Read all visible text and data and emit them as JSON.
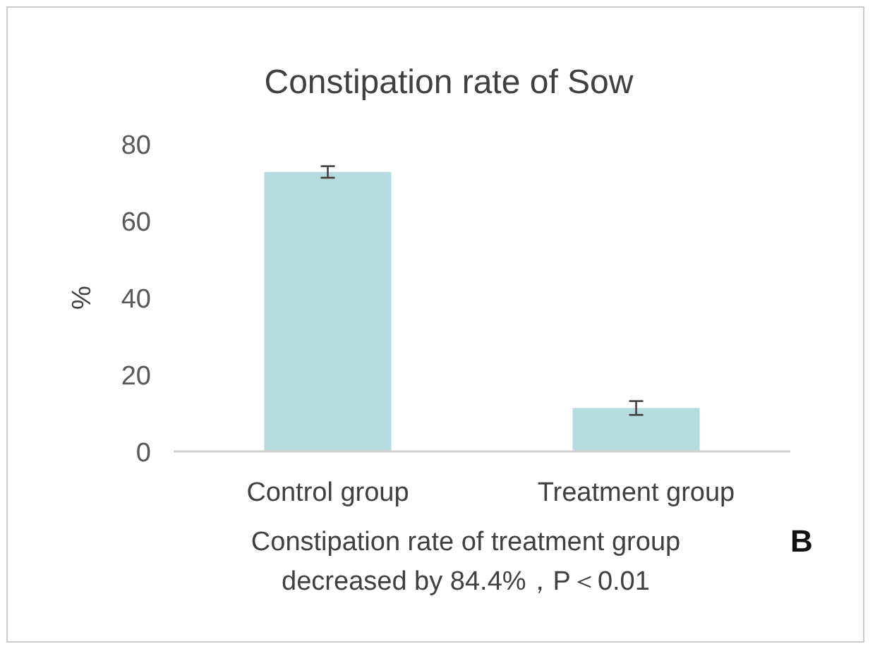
{
  "chart_data": {
    "type": "bar",
    "title": "Constipation rate of Sow",
    "ylabel": "%",
    "categories": [
      "Control group",
      "Treatment group"
    ],
    "values": [
      72.7,
      11.3
    ],
    "errors": [
      1.5,
      1.8
    ],
    "color": "#b5dbde",
    "ylim": [
      0,
      80
    ],
    "yticks": [
      0,
      20,
      40,
      60,
      80
    ],
    "annotations": [
      "Constipation rate of treatment group\ndecreased by 84.4%，P＜0.01",
      "B"
    ]
  }
}
